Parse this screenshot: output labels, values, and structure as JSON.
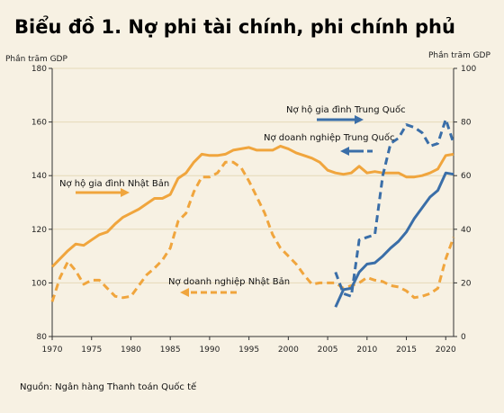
{
  "title": "Biểu đồ 1. Nợ phi tài chính, phi chính phủ",
  "source": "Nguồn: Ngân hàng Thanh toán Quốc tế",
  "colors": {
    "orange": "#f0a53d",
    "blue": "#3a6ea8",
    "grid": "#e6d9b8",
    "background": "#f7f1e3"
  },
  "chart_data": {
    "type": "line",
    "left_axis": {
      "label": "Phần trăm GDP",
      "ylim": [
        80,
        180
      ],
      "ticks": [
        80,
        100,
        120,
        140,
        160,
        180
      ]
    },
    "right_axis": {
      "label": "Phần trăm GDP",
      "ylim": [
        0,
        100
      ],
      "ticks": [
        0,
        20,
        40,
        60,
        80,
        100
      ]
    },
    "x_axis": {
      "xlim": [
        1970,
        2021
      ],
      "ticks": [
        1970,
        1975,
        1980,
        1985,
        1990,
        1995,
        2000,
        2005,
        2010,
        2015,
        2020
      ]
    },
    "grid": "horizontal",
    "series": [
      {
        "name": "Nợ hộ gia đình Nhật Bản",
        "axis": "left",
        "color": "#f0a53d",
        "style": "solid",
        "x": [
          1970,
          1971,
          1972,
          1973,
          1974,
          1975,
          1976,
          1977,
          1978,
          1979,
          1980,
          1981,
          1982,
          1983,
          1984,
          1985,
          1986,
          1987,
          1988,
          1989,
          1990,
          1991,
          1992,
          1993,
          1994,
          1995,
          1996,
          1997,
          1998,
          1999,
          2000,
          2001,
          2002,
          2003,
          2004,
          2005,
          2006,
          2007,
          2008,
          2009,
          2010,
          2011,
          2012,
          2013,
          2014,
          2015,
          2016,
          2017,
          2018,
          2019,
          2020,
          2021
        ],
        "y": [
          106,
          109,
          112,
          114.5,
          114,
          116,
          118,
          119,
          122,
          124.5,
          126,
          127.5,
          129.5,
          131.5,
          131.5,
          133,
          139,
          141,
          145,
          148,
          147.5,
          147.5,
          148,
          149.5,
          150,
          150.5,
          149.5,
          149.5,
          149.5,
          151,
          150,
          148.5,
          147.5,
          146.5,
          145,
          142,
          141,
          140.5,
          141,
          143.5,
          141,
          141.5,
          141,
          141,
          141,
          139.5,
          139.5,
          140,
          141,
          142.5,
          147.5,
          148
        ]
      },
      {
        "name": "Nợ doanh nghiệp Nhật Bản",
        "axis": "left",
        "color": "#f0a53d",
        "style": "dashed",
        "x": [
          1970,
          1971,
          1972,
          1973,
          1974,
          1975,
          1976,
          1977,
          1978,
          1979,
          1980,
          1981,
          1982,
          1983,
          1984,
          1985,
          1986,
          1987,
          1988,
          1989,
          1990,
          1991,
          1992,
          1993,
          1994,
          1995,
          1996,
          1997,
          1998,
          1999,
          2000,
          2001,
          2002,
          2003,
          2004,
          2005,
          2006,
          2007,
          2008,
          2009,
          2010,
          2011,
          2012,
          2013,
          2014,
          2015,
          2016,
          2017,
          2018,
          2019,
          2020,
          2021
        ],
        "y": [
          93,
          102,
          108,
          104.5,
          99.5,
          101,
          101,
          98,
          95,
          94.5,
          95,
          99,
          103,
          105.5,
          108.5,
          113,
          123,
          126,
          134,
          139.5,
          139.5,
          141,
          145,
          145,
          143,
          138,
          132,
          126,
          118,
          113,
          110,
          107,
          103,
          99.5,
          100,
          100,
          100,
          98,
          99,
          100,
          102,
          101,
          100.5,
          99,
          98.5,
          97,
          94.5,
          95,
          96,
          98,
          109,
          117
        ]
      },
      {
        "name": "Nợ hộ gia đình Trung Quốc",
        "axis": "right",
        "color": "#3a6ea8",
        "style": "solid",
        "x": [
          2006,
          2007,
          2008,
          2009,
          2010,
          2011,
          2012,
          2013,
          2014,
          2015,
          2016,
          2017,
          2018,
          2019,
          2020,
          2021
        ],
        "y": [
          11,
          17.5,
          18,
          24,
          27,
          27.5,
          30,
          33,
          35.5,
          39,
          44,
          48,
          52,
          54.5,
          61,
          60.5
        ]
      },
      {
        "name": "Nợ doanh nghiệp Trung Quốc",
        "axis": "right",
        "color": "#3a6ea8",
        "style": "dashed",
        "x": [
          2006,
          2007,
          2008,
          2009,
          2010,
          2011,
          2012,
          2013,
          2014,
          2015,
          2016,
          2017,
          2018,
          2019,
          2020,
          2021
        ],
        "y": [
          24,
          16,
          15,
          36,
          37,
          38,
          60,
          72,
          74,
          79,
          78,
          76,
          71,
          72,
          81,
          72
        ]
      }
    ],
    "annotations": [
      {
        "text": "Nợ hộ gia đình Trung Quốc",
        "series": 2,
        "arrow": "right"
      },
      {
        "text": "Nợ doanh nghiệp Trung Quốc",
        "series": 3,
        "arrow": "left"
      },
      {
        "text": "Nợ hộ gia đình Nhật Bản",
        "series": 0,
        "arrow": "right"
      },
      {
        "text": "Nợ doanh nghiệp Nhật Bản",
        "series": 1,
        "arrow": "left"
      }
    ]
  }
}
